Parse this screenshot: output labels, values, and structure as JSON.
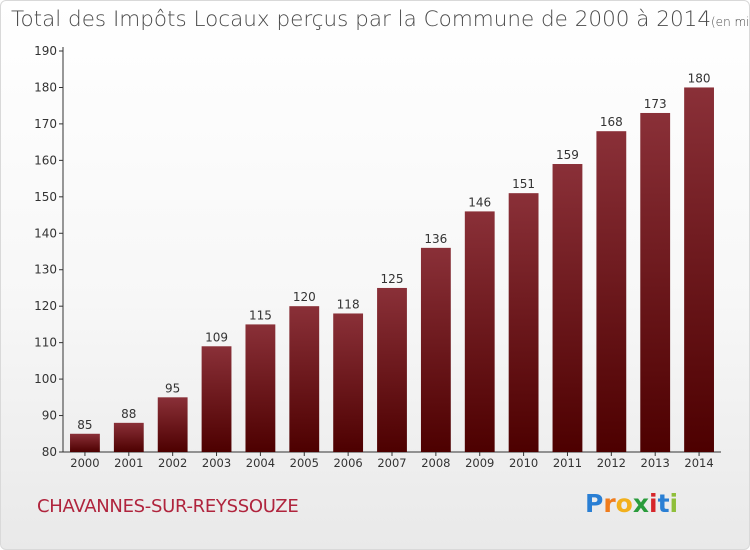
{
  "header": {
    "title": "Total des Impôts Locaux perçus par la Commune de 2000 à 2014",
    "unit": "(en milliers d'€)"
  },
  "footer": {
    "commune": "CHAVANNES-SUR-REYSSOUZE",
    "logo_letters": [
      "P",
      "r",
      "o",
      "x",
      "i",
      "t",
      "i"
    ],
    "logo_colors": [
      "#2a7fd4",
      "#f07c1c",
      "#f2b01c",
      "#2a9c3c",
      "#d6262b",
      "#2a7fd4",
      "#8fbf3a"
    ]
  },
  "chart_data": {
    "type": "bar",
    "title": "Total des Impôts Locaux perçus par la Commune de 2000 à 2014",
    "unit": "(en milliers d'€)",
    "xlabel": "",
    "ylabel": "",
    "categories": [
      "2000",
      "2001",
      "2002",
      "2003",
      "2004",
      "2005",
      "2006",
      "2007",
      "2008",
      "2009",
      "2010",
      "2011",
      "2012",
      "2013",
      "2014"
    ],
    "values": [
      85,
      88,
      95,
      109,
      115,
      120,
      118,
      125,
      136,
      146,
      151,
      159,
      168,
      173,
      180
    ],
    "ylim": [
      80,
      190
    ],
    "yticks": [
      80,
      90,
      100,
      110,
      120,
      130,
      140,
      150,
      160,
      170,
      180,
      190
    ],
    "grid": false,
    "bar_color_top": "#8a3038",
    "bar_color_bottom": "#4d0000"
  }
}
